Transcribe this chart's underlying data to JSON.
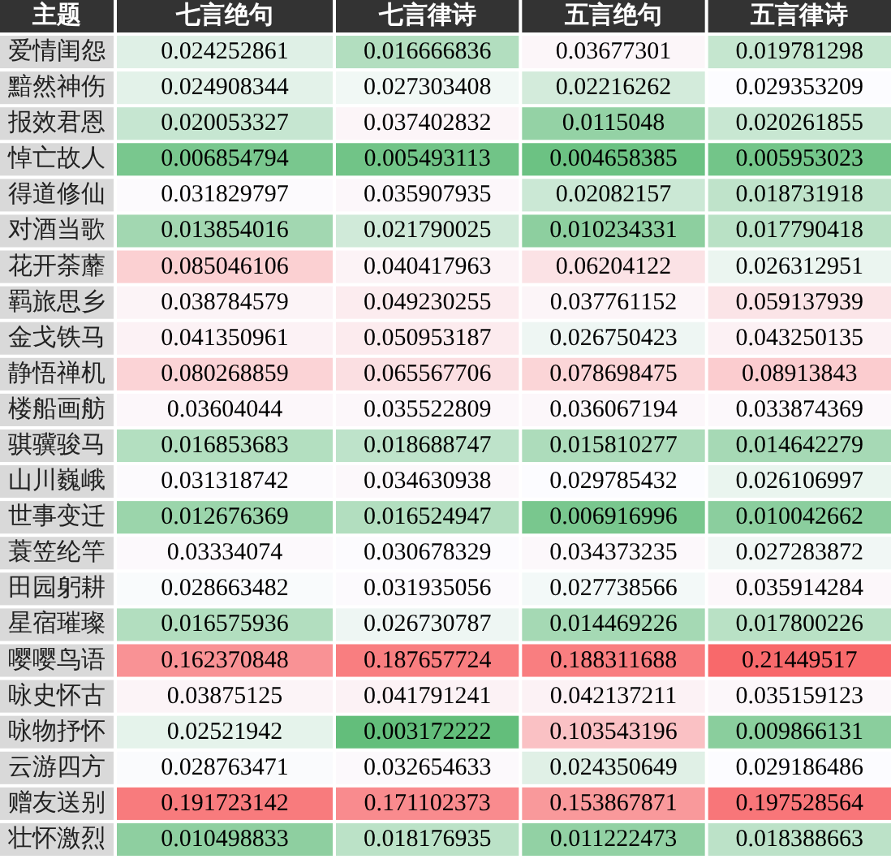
{
  "chart_data": {
    "type": "heatmap",
    "ylabel": "主题",
    "data_labels": true,
    "categories": [
      "七言绝句",
      "七言律诗",
      "五言绝句",
      "五言律诗"
    ],
    "y_categories": [
      "爱情闺怨",
      "黯然神伤",
      "报效君恩",
      "悼亡故人",
      "得道修仙",
      "对酒当歌",
      "花开荼蘼",
      "羁旅思乡",
      "金戈铁马",
      "静悟禅机",
      "楼船画舫",
      "骐骥骏马",
      "山川巍峨",
      "世事变迁",
      "蓑笠纶竿",
      "田园躬耕",
      "星宿璀璨",
      "嘤嘤鸟语",
      "咏史怀古",
      "咏物抒怀",
      "云游四方",
      "赠友送别",
      "壮怀激烈"
    ],
    "cells": [
      [
        0.024252861,
        0.016666836,
        0.03677301,
        0.019781298
      ],
      [
        0.024908344,
        0.027303408,
        0.02216262,
        0.029353209
      ],
      [
        0.020053327,
        0.037402832,
        0.0115048,
        0.020261855
      ],
      [
        0.006854794,
        0.005493113,
        0.004658385,
        0.005953023
      ],
      [
        0.031829797,
        0.035907935,
        0.02082157,
        0.018731918
      ],
      [
        0.013854016,
        0.021790025,
        0.010234331,
        0.017790418
      ],
      [
        0.085046106,
        0.040417963,
        0.06204122,
        0.026312951
      ],
      [
        0.038784579,
        0.049230255,
        0.037761152,
        0.059137939
      ],
      [
        0.041350961,
        0.050953187,
        0.026750423,
        0.043250135
      ],
      [
        0.080268859,
        0.065567706,
        0.078698475,
        0.08913843
      ],
      [
        0.03604044,
        0.035522809,
        0.036067194,
        0.033874369
      ],
      [
        0.016853683,
        0.018688747,
        0.015810277,
        0.014642279
      ],
      [
        0.031318742,
        0.034630938,
        0.029785432,
        0.026106997
      ],
      [
        0.012676369,
        0.016524947,
        0.006916996,
        0.010042662
      ],
      [
        0.03334074,
        0.030678329,
        0.034373235,
        0.027283872
      ],
      [
        0.028663482,
        0.031935056,
        0.027738566,
        0.035914284
      ],
      [
        0.016575936,
        0.026730787,
        0.014469226,
        0.017800226
      ],
      [
        0.162370848,
        0.187657724,
        0.188311688,
        0.21449517
      ],
      [
        0.03875125,
        0.041791241,
        0.042137211,
        0.035159123
      ],
      [
        0.02521942,
        0.003172222,
        0.103543196,
        0.009866131
      ],
      [
        0.028763471,
        0.032654633,
        0.024350649,
        0.029186486
      ],
      [
        0.191723142,
        0.171102373,
        0.153867871,
        0.197528564
      ],
      [
        0.010498833,
        0.018176935,
        0.011222473,
        0.018388663
      ]
    ]
  }
}
